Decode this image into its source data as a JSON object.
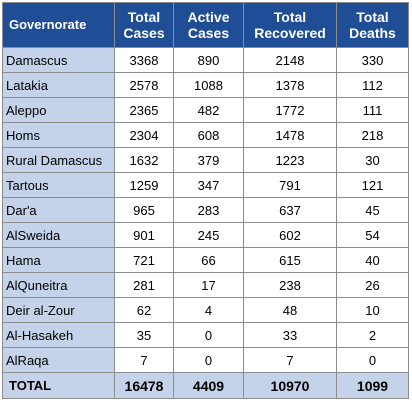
{
  "colors": {
    "header_background": "#1f4e96",
    "header_text": "#ffffff",
    "governorate_column_background": "#c5d3ea",
    "total_row_background": "#c5d3ea",
    "cell_background": "#ffffff",
    "grid_line": "#8c8c8c"
  },
  "table": {
    "headers": {
      "governorate": "Governorate",
      "total_cases": "Total Cases",
      "active_cases": "Active Cases",
      "total_recovered": "Total Recovered",
      "total_deaths": "Total Deaths"
    },
    "rows": [
      {
        "governorate": "Damascus",
        "total_cases": "3368",
        "active_cases": "890",
        "total_recovered": "2148",
        "total_deaths": "330"
      },
      {
        "governorate": "Latakia",
        "total_cases": "2578",
        "active_cases": "1088",
        "total_recovered": "1378",
        "total_deaths": "112"
      },
      {
        "governorate": "Aleppo",
        "total_cases": "2365",
        "active_cases": "482",
        "total_recovered": "1772",
        "total_deaths": "111"
      },
      {
        "governorate": "Homs",
        "total_cases": "2304",
        "active_cases": "608",
        "total_recovered": "1478",
        "total_deaths": "218"
      },
      {
        "governorate": "Rural Damascus",
        "total_cases": "1632",
        "active_cases": "379",
        "total_recovered": "1223",
        "total_deaths": "30"
      },
      {
        "governorate": "Tartous",
        "total_cases": "1259",
        "active_cases": "347",
        "total_recovered": "791",
        "total_deaths": "121"
      },
      {
        "governorate": "Dar'a",
        "total_cases": "965",
        "active_cases": "283",
        "total_recovered": "637",
        "total_deaths": "45"
      },
      {
        "governorate": "AlSweida",
        "total_cases": "901",
        "active_cases": "245",
        "total_recovered": "602",
        "total_deaths": "54"
      },
      {
        "governorate": "Hama",
        "total_cases": "721",
        "active_cases": "66",
        "total_recovered": "615",
        "total_deaths": "40"
      },
      {
        "governorate": "AlQuneitra",
        "total_cases": "281",
        "active_cases": "17",
        "total_recovered": "238",
        "total_deaths": "26"
      },
      {
        "governorate": "Deir al-Zour",
        "total_cases": "62",
        "active_cases": "4",
        "total_recovered": "48",
        "total_deaths": "10"
      },
      {
        "governorate": "Al-Hasakeh",
        "total_cases": "35",
        "active_cases": "0",
        "total_recovered": "33",
        "total_deaths": "2"
      },
      {
        "governorate": "AlRaqa",
        "total_cases": "7",
        "active_cases": "0",
        "total_recovered": "7",
        "total_deaths": "0"
      }
    ],
    "total_row": {
      "governorate": "TOTAL",
      "total_cases": "16478",
      "active_cases": "4409",
      "total_recovered": "10970",
      "total_deaths": "1099"
    }
  }
}
